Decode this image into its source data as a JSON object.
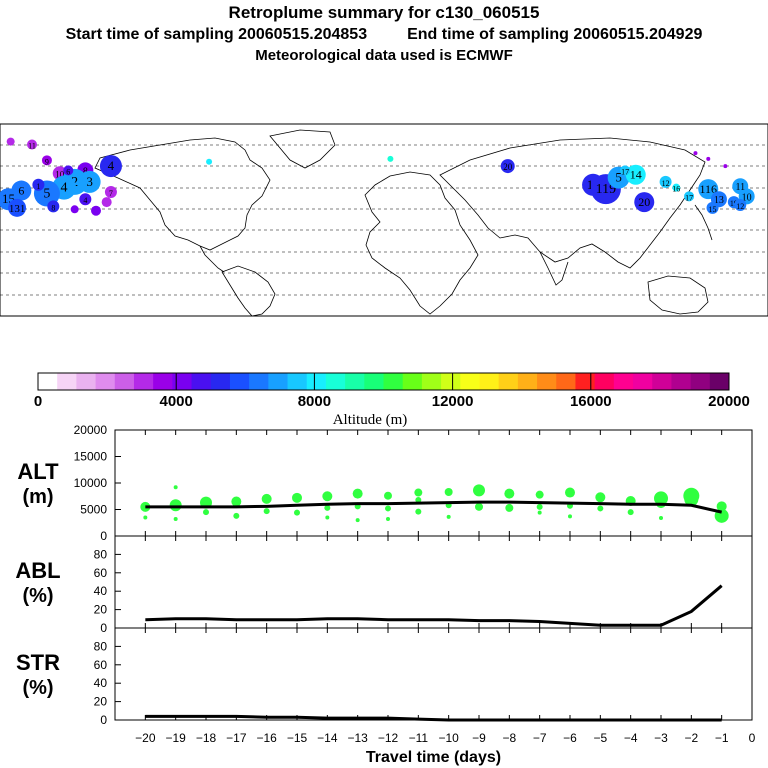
{
  "header": {
    "title": "Retroplume summary for c130_060515",
    "start_label": "Start time of sampling 20060515.204853",
    "end_label": "End time of sampling 20060515.204929",
    "met_label": "Meteorological data used is ECMWF"
  },
  "colorbar": {
    "label": "Altitude (m)",
    "ticks": [
      "0",
      "4000",
      "8000",
      "12000",
      "16000",
      "20000"
    ],
    "colors": [
      "#ffffff",
      "#f6d4f6",
      "#eab2f0",
      "#df8cee",
      "#cc5fe8",
      "#b42ae8",
      "#9a00e8",
      "#7a00f0",
      "#4a10f0",
      "#2828f0",
      "#1a50ff",
      "#1a78ff",
      "#18a0ff",
      "#18c8ff",
      "#18eeff",
      "#18ffd8",
      "#18ffa8",
      "#18ff78",
      "#30ff40",
      "#68ff18",
      "#a0ff18",
      "#d0ff18",
      "#f8ff18",
      "#fff018",
      "#ffd018",
      "#ffb018",
      "#ff8c18",
      "#ff6818",
      "#ff2020",
      "#ff0060",
      "#ff0090",
      "#f000a0",
      "#d00098",
      "#b00090",
      "#900080",
      "#6a0068"
    ]
  },
  "map": {
    "markers": [
      {
        "lon": -128,
        "lat": 33,
        "alt": 5000,
        "r": 11,
        "label": "4"
      },
      {
        "lon": -140,
        "lat": 30,
        "alt": 4200,
        "r": 8,
        "label": "8"
      },
      {
        "lon": -152,
        "lat": 28,
        "alt": 3200,
        "r": 7,
        "label": "10"
      },
      {
        "lon": -158,
        "lat": 37,
        "alt": 3400,
        "r": 5,
        "label": "9"
      },
      {
        "lon": -165,
        "lat": 48,
        "alt": 3000,
        "r": 5,
        "label": "11"
      },
      {
        "lon": -175,
        "lat": 50,
        "alt": 2800,
        "r": 4,
        "label": ""
      },
      {
        "lon": -145,
        "lat": 22,
        "alt": 7000,
        "r": 13,
        "label": "2"
      },
      {
        "lon": -138,
        "lat": 22,
        "alt": 7200,
        "r": 11,
        "label": "3"
      },
      {
        "lon": -150,
        "lat": 18,
        "alt": 6800,
        "r": 12,
        "label": "4"
      },
      {
        "lon": -158,
        "lat": 14,
        "alt": 6500,
        "r": 13,
        "label": "5"
      },
      {
        "lon": -170,
        "lat": 16,
        "alt": 6200,
        "r": 10,
        "label": "6"
      },
      {
        "lon": -176,
        "lat": 10,
        "alt": 6400,
        "r": 11,
        "label": "15"
      },
      {
        "lon": -172,
        "lat": 4,
        "alt": 6000,
        "r": 9,
        "label": "131"
      },
      {
        "lon": -155,
        "lat": 5,
        "alt": 5200,
        "r": 6,
        "label": "8"
      },
      {
        "lon": -140,
        "lat": 10,
        "alt": 4800,
        "r": 6,
        "label": "4"
      },
      {
        "lon": -130,
        "lat": 8,
        "alt": 3200,
        "r": 5,
        "label": ""
      },
      {
        "lon": -128,
        "lat": 15,
        "alt": 3000,
        "r": 6,
        "label": "7"
      },
      {
        "lon": -135,
        "lat": 2,
        "alt": 4000,
        "r": 5,
        "label": ""
      },
      {
        "lon": -145,
        "lat": 3,
        "alt": 4400,
        "r": 4,
        "label": ""
      },
      {
        "lon": -162,
        "lat": 20,
        "alt": 5200,
        "r": 6,
        "label": "1"
      },
      {
        "lon": -148,
        "lat": 30,
        "alt": 4500,
        "r": 5,
        "label": "6"
      },
      {
        "lon": -82,
        "lat": 36,
        "alt": 8200,
        "r": 3,
        "label": ""
      },
      {
        "lon": 3,
        "lat": 38,
        "alt": 8500,
        "r": 3,
        "label": ""
      },
      {
        "lon": 58,
        "lat": 33,
        "alt": 5400,
        "r": 7,
        "label": "20"
      },
      {
        "lon": 98,
        "lat": 20,
        "alt": 5200,
        "r": 11,
        "label": "11"
      },
      {
        "lon": 104,
        "lat": 17,
        "alt": 5400,
        "r": 15,
        "label": "119"
      },
      {
        "lon": 110,
        "lat": 25,
        "alt": 6800,
        "r": 11,
        "label": "5"
      },
      {
        "lon": 118,
        "lat": 27,
        "alt": 7800,
        "r": 10,
        "label": "14"
      },
      {
        "lon": 113,
        "lat": 30,
        "alt": 7600,
        "r": 5,
        "label": "17"
      },
      {
        "lon": 122,
        "lat": 8,
        "alt": 5000,
        "r": 10,
        "label": "20"
      },
      {
        "lon": 132,
        "lat": 22,
        "alt": 7400,
        "r": 6,
        "label": "12"
      },
      {
        "lon": 137,
        "lat": 18,
        "alt": 7800,
        "r": 4,
        "label": "16"
      },
      {
        "lon": 143,
        "lat": 12,
        "alt": 7600,
        "r": 5,
        "label": "17"
      },
      {
        "lon": 152,
        "lat": 17,
        "alt": 6800,
        "r": 10,
        "label": "116"
      },
      {
        "lon": 157,
        "lat": 10,
        "alt": 6600,
        "r": 8,
        "label": "13"
      },
      {
        "lon": 154,
        "lat": 4,
        "alt": 6400,
        "r": 6,
        "label": "15"
      },
      {
        "lon": 164,
        "lat": 8,
        "alt": 6200,
        "r": 6,
        "label": "19"
      },
      {
        "lon": 170,
        "lat": 12,
        "alt": 6800,
        "r": 8,
        "label": "10"
      },
      {
        "lon": 167,
        "lat": 19,
        "alt": 7000,
        "r": 8,
        "label": "11"
      },
      {
        "lon": 167,
        "lat": 6,
        "alt": 6600,
        "r": 6,
        "label": "12"
      },
      {
        "lon": 146,
        "lat": 42,
        "alt": 3800,
        "r": 2,
        "label": ""
      },
      {
        "lon": 152,
        "lat": 38,
        "alt": 3800,
        "r": 2,
        "label": ""
      },
      {
        "lon": 160,
        "lat": 33,
        "alt": 3800,
        "r": 2,
        "label": ""
      }
    ]
  },
  "chart_data": [
    {
      "type": "scatter",
      "panel_label": "ALT",
      "panel_unit": "(m)",
      "x": [
        -20,
        -19,
        -18,
        -17,
        -16,
        -15,
        -14,
        -13,
        -12,
        -11,
        -10,
        -9,
        -8,
        -7,
        -6,
        -5,
        -4,
        -3,
        -2,
        -1
      ],
      "line": [
        5500,
        5500,
        5500,
        5500,
        5600,
        5800,
        6000,
        6100,
        6100,
        6200,
        6300,
        6400,
        6400,
        6300,
        6200,
        6100,
        6000,
        6000,
        5800,
        4500
      ],
      "points": [
        {
          "x": -20,
          "y": 5500,
          "r": 5
        },
        {
          "x": -20,
          "y": 3500,
          "r": 2
        },
        {
          "x": -19,
          "y": 5800,
          "r": 6
        },
        {
          "x": -19,
          "y": 3200,
          "r": 2
        },
        {
          "x": -19,
          "y": 9200,
          "r": 2
        },
        {
          "x": -18,
          "y": 6300,
          "r": 6
        },
        {
          "x": -18,
          "y": 4500,
          "r": 3
        },
        {
          "x": -17,
          "y": 6500,
          "r": 5
        },
        {
          "x": -17,
          "y": 3800,
          "r": 3
        },
        {
          "x": -16,
          "y": 7000,
          "r": 5
        },
        {
          "x": -16,
          "y": 4700,
          "r": 3
        },
        {
          "x": -15,
          "y": 7200,
          "r": 5
        },
        {
          "x": -15,
          "y": 4400,
          "r": 3
        },
        {
          "x": -14,
          "y": 7500,
          "r": 5
        },
        {
          "x": -14,
          "y": 5300,
          "r": 3
        },
        {
          "x": -14,
          "y": 3500,
          "r": 2
        },
        {
          "x": -13,
          "y": 8000,
          "r": 5
        },
        {
          "x": -13,
          "y": 5600,
          "r": 3
        },
        {
          "x": -13,
          "y": 3000,
          "r": 2
        },
        {
          "x": -12,
          "y": 7600,
          "r": 4
        },
        {
          "x": -12,
          "y": 5200,
          "r": 3
        },
        {
          "x": -12,
          "y": 3200,
          "r": 2
        },
        {
          "x": -11,
          "y": 8200,
          "r": 4
        },
        {
          "x": -11,
          "y": 6800,
          "r": 3
        },
        {
          "x": -11,
          "y": 4600,
          "r": 3
        },
        {
          "x": -10,
          "y": 8300,
          "r": 4
        },
        {
          "x": -10,
          "y": 5800,
          "r": 3
        },
        {
          "x": -10,
          "y": 3600,
          "r": 2
        },
        {
          "x": -9,
          "y": 8600,
          "r": 6
        },
        {
          "x": -9,
          "y": 5500,
          "r": 4
        },
        {
          "x": -8,
          "y": 8000,
          "r": 5
        },
        {
          "x": -8,
          "y": 5300,
          "r": 4
        },
        {
          "x": -7,
          "y": 7800,
          "r": 4
        },
        {
          "x": -7,
          "y": 5500,
          "r": 3
        },
        {
          "x": -7,
          "y": 4400,
          "r": 2
        },
        {
          "x": -6,
          "y": 8200,
          "r": 5
        },
        {
          "x": -6,
          "y": 5700,
          "r": 3
        },
        {
          "x": -6,
          "y": 3700,
          "r": 2
        },
        {
          "x": -5,
          "y": 7300,
          "r": 5
        },
        {
          "x": -5,
          "y": 5200,
          "r": 3
        },
        {
          "x": -4,
          "y": 6600,
          "r": 5
        },
        {
          "x": -4,
          "y": 4500,
          "r": 3
        },
        {
          "x": -3,
          "y": 7100,
          "r": 7
        },
        {
          "x": -3,
          "y": 6200,
          "r": 5
        },
        {
          "x": -3,
          "y": 3400,
          "r": 2
        },
        {
          "x": -2,
          "y": 7600,
          "r": 8
        },
        {
          "x": -2,
          "y": 6900,
          "r": 7
        },
        {
          "x": -1,
          "y": 5600,
          "r": 5
        },
        {
          "x": -1,
          "y": 3800,
          "r": 7
        }
      ],
      "point_color": "#30ff40",
      "ylim": [
        0,
        20000
      ],
      "yticks": [
        0,
        5000,
        10000,
        15000,
        20000
      ]
    },
    {
      "type": "line",
      "panel_label": "ABL",
      "panel_unit": "(%)",
      "x": [
        -20,
        -19,
        -18,
        -17,
        -16,
        -15,
        -14,
        -13,
        -12,
        -11,
        -10,
        -9,
        -8,
        -7,
        -6,
        -5,
        -4,
        -3,
        -2,
        -1
      ],
      "y": [
        9,
        10,
        10,
        9,
        9,
        9,
        10,
        10,
        9,
        9,
        9,
        8,
        8,
        7,
        5,
        3,
        3,
        3,
        18,
        46
      ],
      "ylim": [
        0,
        100
      ],
      "yticks": [
        0,
        20,
        40,
        60,
        80
      ]
    },
    {
      "type": "line",
      "panel_label": "STR",
      "panel_unit": "(%)",
      "x": [
        -20,
        -19,
        -18,
        -17,
        -16,
        -15,
        -14,
        -13,
        -12,
        -11,
        -10,
        -9,
        -8,
        -7,
        -6,
        -5,
        -4,
        -3,
        -2,
        -1
      ],
      "y": [
        4,
        4,
        4,
        4,
        3,
        3,
        2,
        2,
        2,
        1,
        0,
        0,
        0,
        0,
        0,
        0,
        0,
        0,
        0,
        0
      ],
      "ylim": [
        0,
        100
      ],
      "yticks": [
        0,
        20,
        40,
        60,
        80
      ],
      "xlabel": "Travel time (days)",
      "xticks": [
        -20,
        -19,
        -18,
        -17,
        -16,
        -15,
        -14,
        -13,
        -12,
        -11,
        -10,
        -9,
        -8,
        -7,
        -6,
        -5,
        -4,
        -3,
        -2,
        -1,
        0
      ]
    }
  ]
}
